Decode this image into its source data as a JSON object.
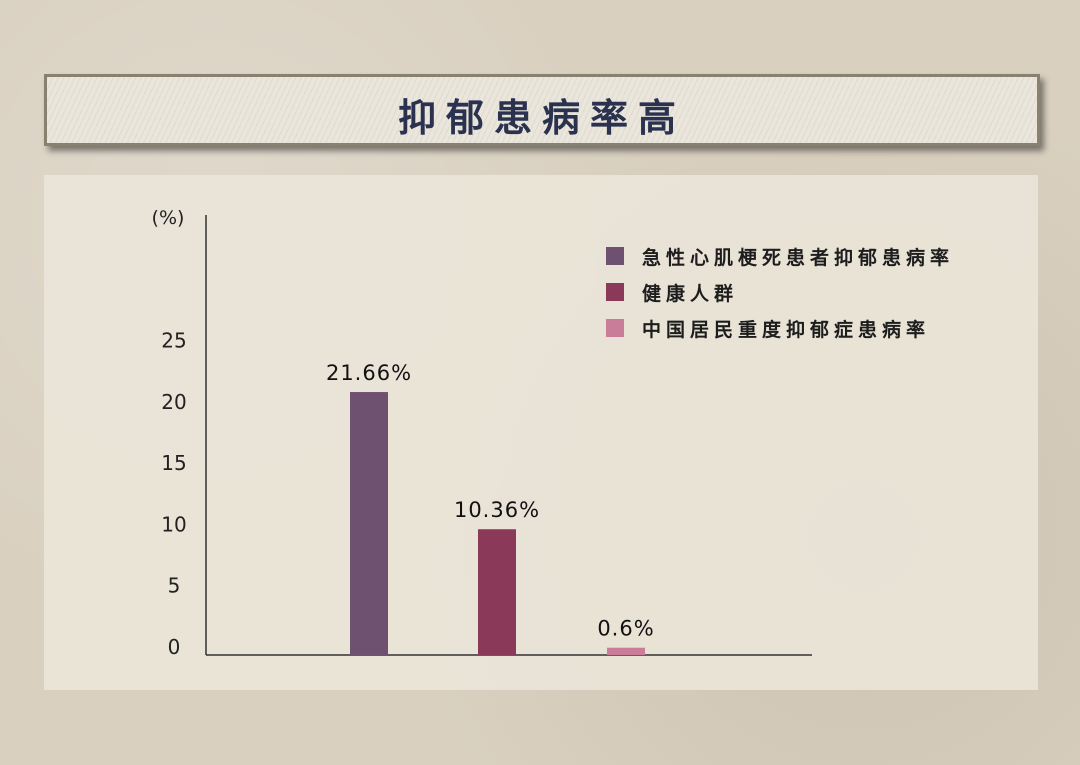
{
  "header": {
    "title": "抑郁患病率高"
  },
  "chart_data": {
    "type": "bar",
    "ylabel": "(%)",
    "ylim": [
      0,
      25
    ],
    "yticks": [
      0,
      5,
      10,
      15,
      20,
      25
    ],
    "categories": [
      "急性心肌梗死患者抑郁患病率",
      "健康人群",
      "中国居民重度抑郁症患病率"
    ],
    "values": [
      21.66,
      10.36,
      0.6
    ],
    "data_labels": [
      "21.66%",
      "10.36%",
      "0.6%"
    ],
    "colors": [
      "#6e5070",
      "#8a3a58",
      "#c97d98"
    ],
    "legend_position": "top-right",
    "grid": false
  }
}
